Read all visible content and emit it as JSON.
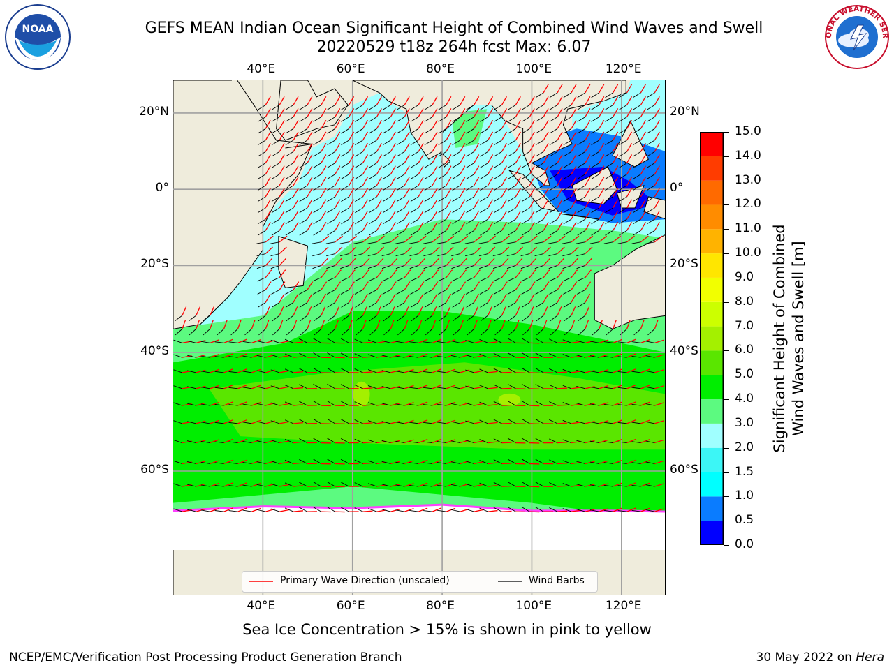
{
  "header": {
    "title_line1": "GEFS MEAN Indian Ocean Significant Height of Combined Wind Waves and Swell",
    "title_line2": "20220529 t18z 264h fcst   Max: 6.07"
  },
  "logos": {
    "noaa_text": "NOAA",
    "nws_text": "NATIONAL WEATHER SERVICE"
  },
  "map": {
    "lon_labels": [
      "40°E",
      "60°E",
      "80°E",
      "100°E",
      "120°E"
    ],
    "lat_labels": [
      "20°N",
      "0°",
      "20°S",
      "40°S",
      "60°S"
    ],
    "lon_range": [
      20,
      130
    ],
    "lat_range": [
      -73,
      28
    ],
    "legend": {
      "wave_dir_label": "Primary Wave Direction (unscaled)",
      "barbs_label": "Wind Barbs"
    },
    "wave_dir_color": "#ff0000",
    "barb_color": "#000000",
    "land_color": "#efecdc"
  },
  "colorbar": {
    "label_line1": "Significant Height of Combined",
    "label_line2": "Wind Waves and Swell [m]",
    "ticks": [
      "0.0",
      "0.5",
      "1.0",
      "1.5",
      "2.0",
      "3.0",
      "4.0",
      "5.0",
      "6.0",
      "7.0",
      "8.0",
      "9.0",
      "10.0",
      "11.0",
      "12.0",
      "13.0",
      "14.0",
      "15.0"
    ],
    "colors": [
      "#0000ff",
      "#0a7cff",
      "#00ffff",
      "#3cf6f6",
      "#a0ffff",
      "#5cfa80",
      "#00ee00",
      "#5ae600",
      "#a4f000",
      "#ccff00",
      "#f2ff00",
      "#ffe600",
      "#ffb300",
      "#ff8c00",
      "#ff6a00",
      "#ff3c00",
      "#ff0000"
    ]
  },
  "footer": {
    "note": "Sea Ice Concentration > 15% is shown in pink to yellow",
    "left": "NCEP/EMC/Verification Post Processing Product Generation Branch",
    "right_date": "30 May 2022 on ",
    "right_host": "Hera"
  }
}
